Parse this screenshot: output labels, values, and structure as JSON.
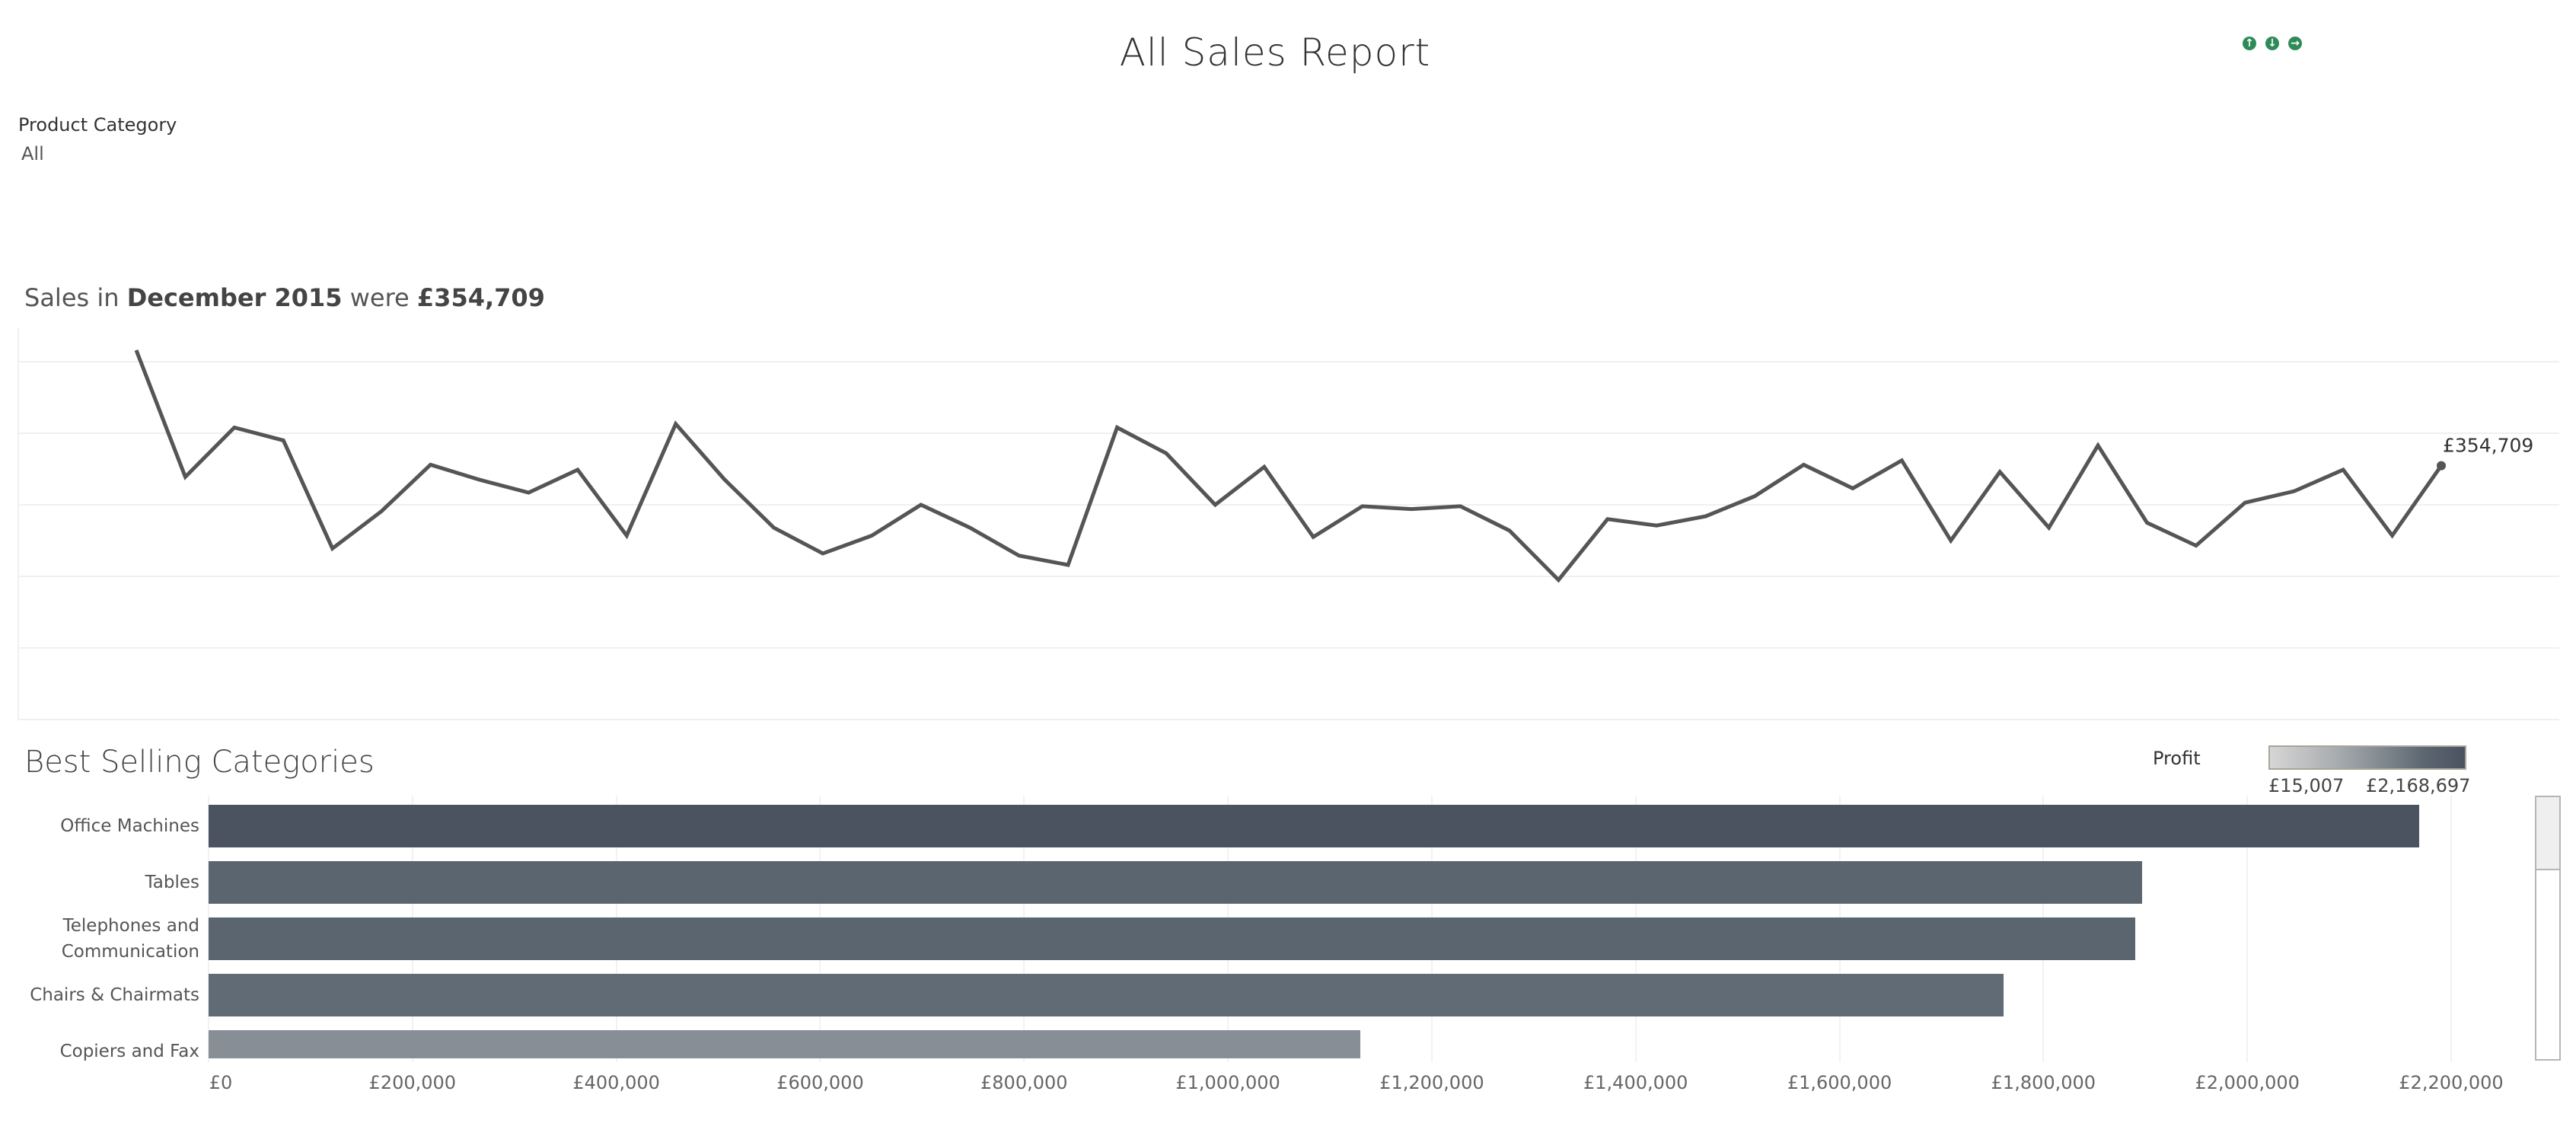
{
  "header": {
    "title": "All Sales Report",
    "nav_icons": [
      "arrow-up-icon",
      "arrow-down-icon",
      "arrow-right-icon"
    ],
    "nav_color": "#2e8b57"
  },
  "filter": {
    "label": "Product Category",
    "value": "All"
  },
  "line_section": {
    "title_prefix": "Sales in ",
    "title_period": "December 2015",
    "title_mid": " were ",
    "title_value": "£354,709"
  },
  "bar_section": {
    "title": "Best Selling Categories",
    "legend": {
      "title": "Profit",
      "min_label": "£15,007",
      "max_label": "£2,168,697",
      "min_color": "#d6d6d6",
      "max_color": "#4b5260"
    }
  },
  "chart_data": [
    {
      "type": "line",
      "title": "",
      "x_granularity": "month",
      "x_range": [
        "January 2012",
        "December 2015"
      ],
      "y_axis_shown": false,
      "grid": true,
      "line_color": "#555555",
      "last_point_label": "£354,709",
      "values": [
        516000,
        339000,
        408000,
        390000,
        239000,
        291000,
        356000,
        335000,
        317000,
        349000,
        257000,
        413000,
        335000,
        268000,
        232000,
        257000,
        300000,
        268000,
        229000,
        216000,
        408000,
        372000,
        300000,
        353000,
        255000,
        298000,
        294000,
        298000,
        264000,
        195000,
        280000,
        271000,
        284000,
        312000,
        356000,
        323000,
        362000,
        250000,
        346000,
        268000,
        383000,
        275000,
        243000,
        303000,
        319000,
        349000,
        257000,
        354709
      ]
    },
    {
      "type": "bar",
      "orientation": "horizontal",
      "categories": [
        "Office Machines",
        "Tables",
        "Telephones and Communication",
        "Chairs & Chairmats",
        "Copiers and Fax"
      ],
      "category_lines": [
        [
          "Office Machines"
        ],
        [
          "Tables"
        ],
        [
          "Telephones and",
          "Communication"
        ],
        [
          "Chairs & Chairmats"
        ],
        [
          "Copiers and Fax"
        ]
      ],
      "values": [
        2168697,
        1897000,
        1890000,
        1761000,
        1130000
      ],
      "colors": [
        "#4b5260",
        "#5b6570",
        "#5b6570",
        "#616b75",
        "#878e95"
      ],
      "xlim": [
        0,
        2200000
      ],
      "tick_labels": [
        "£0",
        "£200,000",
        "£400,000",
        "£600,000",
        "£800,000",
        "£1,000,000",
        "£1,200,000",
        "£1,400,000",
        "£1,600,000",
        "£1,800,000",
        "£2,000,000",
        "£2,200,000"
      ],
      "grid": true
    }
  ]
}
